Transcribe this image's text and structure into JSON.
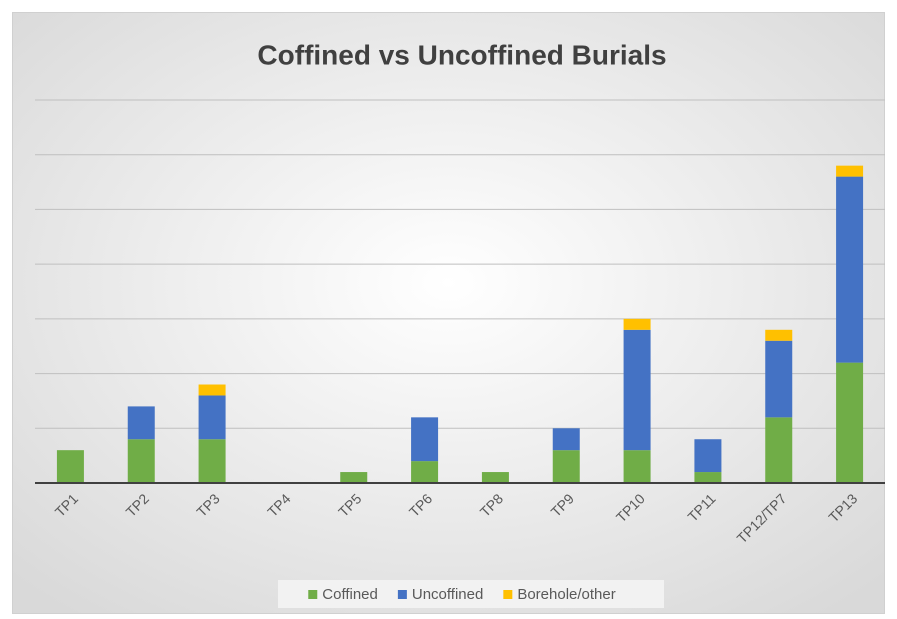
{
  "chart_data": {
    "type": "bar",
    "stacked": true,
    "title": "Coffined vs Uncoffined Burials",
    "categories": [
      "TP1",
      "TP2",
      "TP3",
      "TP4",
      "TP5",
      "TP6",
      "TP8",
      "TP9",
      "TP10",
      "TP11",
      "TP12/TP7",
      "TP13"
    ],
    "series": [
      {
        "name": "Coffined",
        "color": "#70ad47",
        "values": [
          3,
          4,
          4,
          0,
          1,
          2,
          1,
          3,
          3,
          1,
          6,
          11
        ]
      },
      {
        "name": "Uncoffined",
        "color": "#4472c4",
        "values": [
          0,
          3,
          4,
          0,
          0,
          4,
          0,
          2,
          11,
          3,
          7,
          17
        ]
      },
      {
        "name": "Borehole/other",
        "color": "#ffc000",
        "values": [
          0,
          0,
          1,
          0,
          0,
          0,
          0,
          0,
          1,
          0,
          1,
          1
        ]
      }
    ],
    "ylim": [
      0,
      35
    ],
    "yticks": [
      0,
      5,
      10,
      15,
      20,
      25,
      30,
      35
    ],
    "grid": true,
    "legend": "bottom"
  }
}
